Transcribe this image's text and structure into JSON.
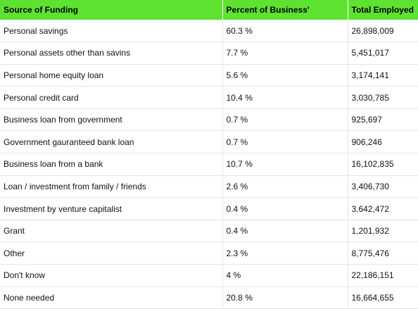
{
  "chart_data": {
    "type": "table",
    "columns": [
      "Source of Funding",
      "Percent of Business'",
      "Total Employed"
    ],
    "rows": [
      [
        "Personal savings",
        "60.3 %",
        "26,898,009"
      ],
      [
        "Personal assets other than savins",
        "7.7 %",
        "5,451,017"
      ],
      [
        "Personal home equity loan",
        "5.6 %",
        "3,174,141"
      ],
      [
        "Personal credit card",
        "10.4 %",
        "3,030,785"
      ],
      [
        "Business loan from government",
        "0.7 %",
        "925,697"
      ],
      [
        "Government gauranteed bank loan",
        "0.7 %",
        "906,246"
      ],
      [
        "Business loan from a bank",
        "10.7 %",
        "16,102,835"
      ],
      [
        "Loan / investment from family / friends",
        "2.6 %",
        "3,406,730"
      ],
      [
        "Investment by venture capitalist",
        "0.4 %",
        "3,642,472"
      ],
      [
        "Grant",
        "0.4 %",
        "1,201,932"
      ],
      [
        "Other",
        "2.3 %",
        "8,775,476"
      ],
      [
        "Don't know",
        "4 %",
        "22,186,151"
      ],
      [
        "None needed",
        "20.8 %",
        "16,664,655"
      ]
    ]
  },
  "colors": {
    "header_background": "#5ee232",
    "row_divider": "#e4e4e4"
  }
}
